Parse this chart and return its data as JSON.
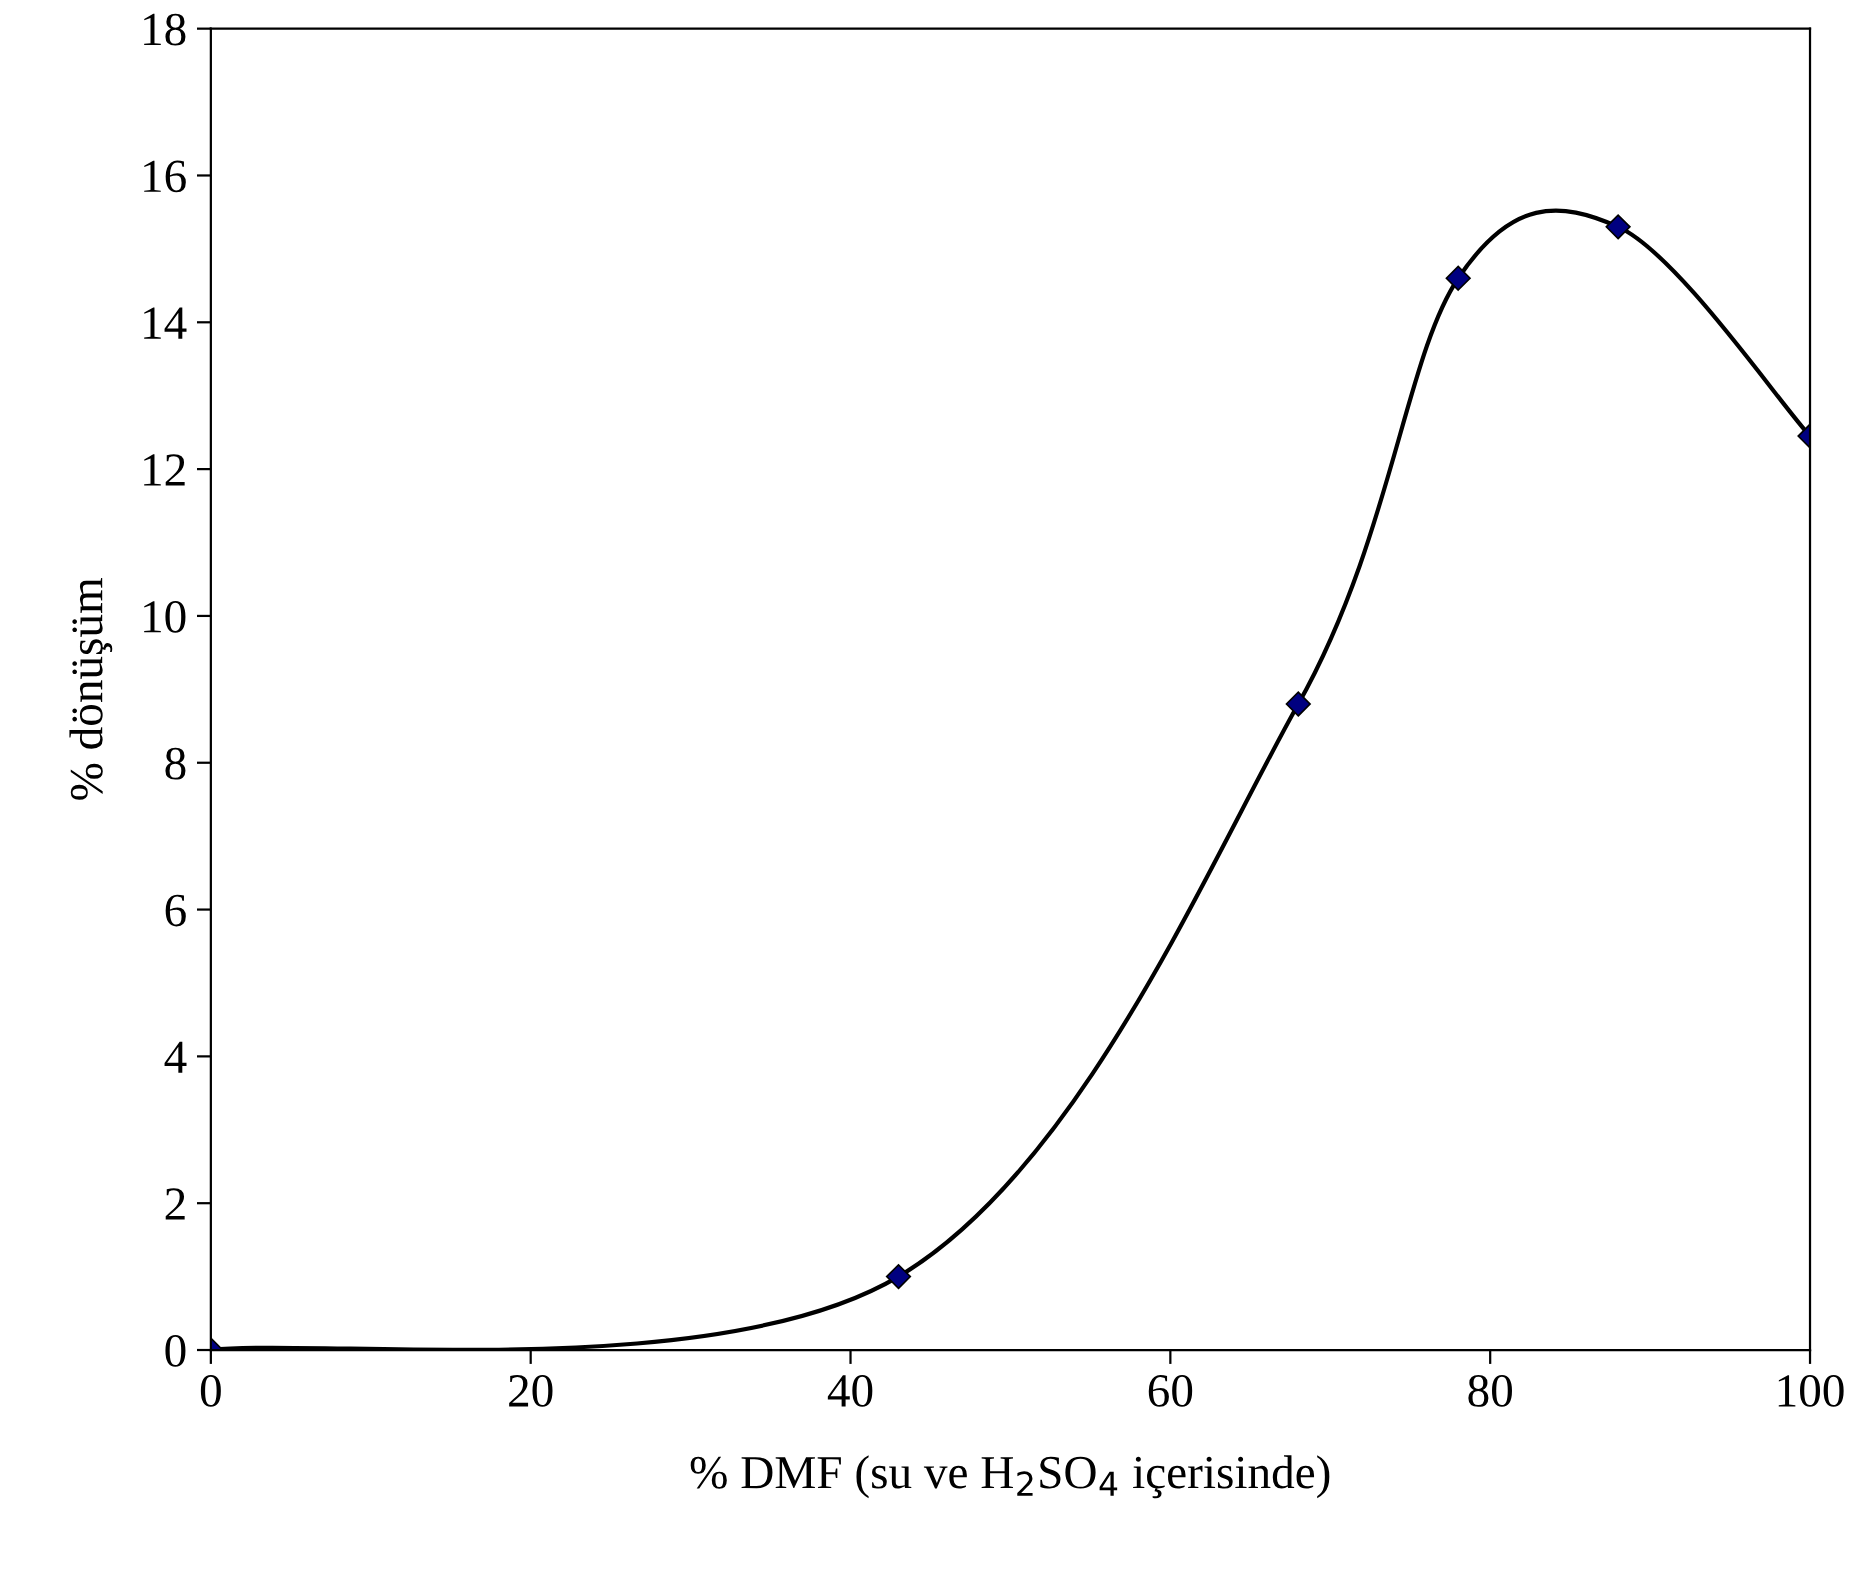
{
  "chart_data": {
    "type": "line",
    "xlabel": "% DMF (su ve H$_{2}$SO$_{4}$ içerisinde)",
    "ylabel": "% dönüşüm",
    "x": [
      0,
      43,
      68,
      78,
      88,
      100
    ],
    "series": [
      {
        "color": "#000080",
        "values": [
          0,
          1.0,
          8.8,
          14.6,
          15.3,
          12.45
        ]
      }
    ],
    "xlim": [
      0,
      100
    ],
    "xticks": [
      0,
      20,
      40,
      60,
      80,
      100
    ],
    "ylim": [
      0,
      18
    ],
    "yticks": [
      0,
      2,
      4,
      6,
      8,
      10,
      12,
      14,
      16,
      18
    ],
    "marker": "diamond",
    "line_style": "solid",
    "grid": false
  }
}
